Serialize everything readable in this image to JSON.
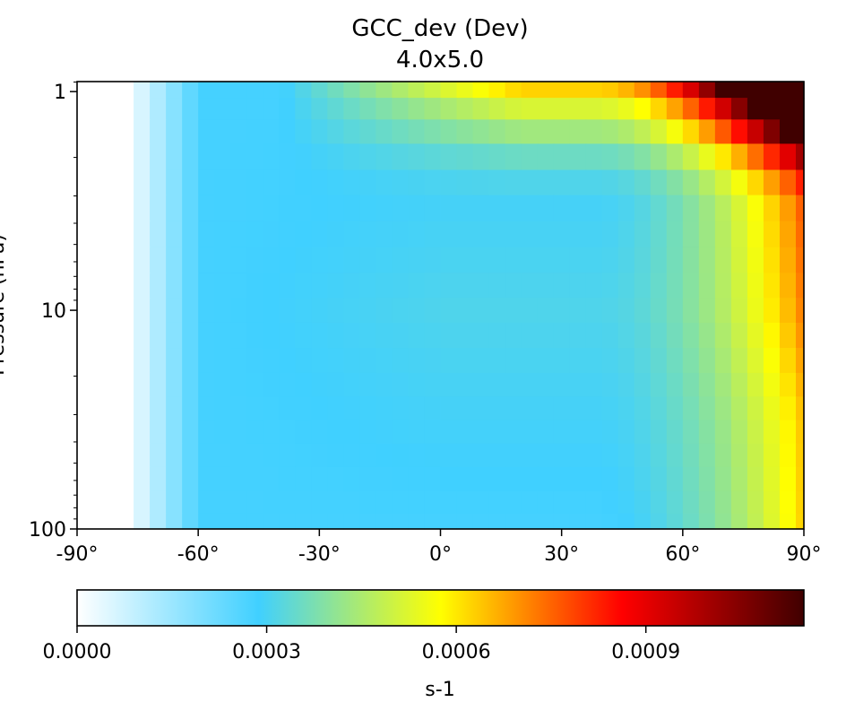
{
  "chart_data": {
    "type": "heatmap",
    "title": "GCC_dev (Dev)",
    "subtitle": "4.0x5.0",
    "xlabel": "",
    "ylabel": "Pressure (hPa)",
    "x_tick_labels": [
      "-90°",
      "-60°",
      "-30°",
      "0°",
      "30°",
      "60°",
      "90°"
    ],
    "y_tick_labels": [
      "1",
      "10",
      "100"
    ],
    "x_range": [
      -90,
      90
    ],
    "y_range": [
      100,
      0.9
    ],
    "y_scale": "log",
    "y_inverted": true,
    "colorbar": {
      "label": "s-1",
      "range": [
        0,
        0.00115
      ],
      "tick_labels": [
        "0.0000",
        "0.0003",
        "0.0006",
        "0.0009"
      ],
      "tick_values": [
        0,
        0.0003,
        0.0006,
        0.0009
      ],
      "colormap": [
        "#ffffff",
        "#40d0ff",
        "#ffff00",
        "#ff0000",
        "#400000"
      ],
      "colormap_stops": [
        0,
        0.25,
        0.5,
        0.75,
        1
      ]
    },
    "grid": false,
    "latitudes": [
      -90,
      -86,
      -82,
      -78,
      -74,
      -70,
      -66,
      -62,
      -58,
      -54,
      -50,
      -46,
      -42,
      -38,
      -34,
      -30,
      -26,
      -22,
      -18,
      -14,
      -10,
      -6,
      -2,
      2,
      6,
      10,
      14,
      18,
      22,
      26,
      30,
      34,
      38,
      42,
      46,
      50,
      54,
      58,
      62,
      66,
      70,
      74,
      78,
      82,
      86,
      90
    ],
    "pressure_levels": [
      0.95,
      1.2,
      1.5,
      2.0,
      2.6,
      3.4,
      4.5,
      5.9,
      7.7,
      10,
      13,
      17,
      22,
      28,
      36,
      46,
      59,
      76,
      95
    ],
    "note_values": "Values in s-1; rows from top (lowest pressure) to bottom; columns from -90 to 90 latitude. Estimated visually."
  }
}
